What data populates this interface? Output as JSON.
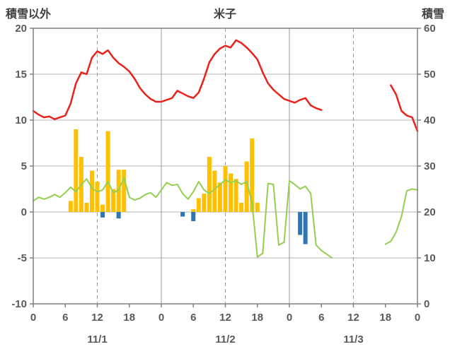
{
  "header": {
    "left_label": "積雪以外",
    "title": "米子",
    "right_label": "積雪"
  },
  "chart_data": {
    "type": "mixed",
    "title": "米子",
    "left_axis_title": "積雪以外",
    "right_axis_title": "積雪",
    "x_range": [
      0,
      72
    ],
    "left_axis": {
      "range": [
        -10,
        20
      ],
      "ticks": [
        20,
        15,
        10,
        5,
        0,
        -5,
        -10
      ]
    },
    "right_axis": {
      "range": [
        0,
        60
      ],
      "ticks": [
        60,
        50,
        40,
        30,
        20,
        10,
        0
      ]
    },
    "x_axis": {
      "ticks": [
        {
          "hour": 0,
          "label": "0"
        },
        {
          "hour": 6,
          "label": "6"
        },
        {
          "hour": 12,
          "label": "12"
        },
        {
          "hour": 18,
          "label": "18"
        },
        {
          "hour": 24,
          "label": "0"
        },
        {
          "hour": 30,
          "label": "6"
        },
        {
          "hour": 36,
          "label": "12"
        },
        {
          "hour": 42,
          "label": "18"
        },
        {
          "hour": 48,
          "label": "0"
        },
        {
          "hour": 54,
          "label": "6"
        },
        {
          "hour": 60,
          "label": "12"
        },
        {
          "hour": 66,
          "label": "18"
        },
        {
          "hour": 72,
          "label": "0"
        }
      ],
      "date_labels": [
        {
          "hour": 12,
          "label": "11/1"
        },
        {
          "hour": 36,
          "label": "11/2"
        },
        {
          "hour": 60,
          "label": "11/3"
        }
      ]
    },
    "vlines": [
      {
        "hour": 12,
        "dashed": true
      },
      {
        "hour": 24,
        "dashed": false
      },
      {
        "hour": 36,
        "dashed": true
      },
      {
        "hour": 48,
        "dashed": false
      },
      {
        "hour": 60,
        "dashed": true
      }
    ],
    "colors": {
      "grid": "#b3b3b3",
      "grid_dark": "#999999",
      "axis": "#808080",
      "text": "#595959",
      "red_line": "#e8221a",
      "green_line": "#92d050",
      "yellow_bar": "#ffc000",
      "blue_bar": "#2e75b6"
    },
    "series": [
      {
        "name": "yellow-bars",
        "type": "bar",
        "axis": "left",
        "color": "#ffc000",
        "points": [
          [
            7,
            1.2
          ],
          [
            8,
            9.0
          ],
          [
            9,
            6.0
          ],
          [
            10,
            1.0
          ],
          [
            11,
            4.5
          ],
          [
            12,
            3.3
          ],
          [
            13,
            0.8
          ],
          [
            14,
            8.8
          ],
          [
            15,
            2.5
          ],
          [
            16,
            4.6
          ],
          [
            17,
            4.6
          ],
          [
            30,
            0.3
          ],
          [
            31,
            1.5
          ],
          [
            32,
            2.0
          ],
          [
            33,
            6.0
          ],
          [
            34,
            4.5
          ],
          [
            35,
            3.2
          ],
          [
            36,
            5.0
          ],
          [
            37,
            4.2
          ],
          [
            38,
            3.6
          ],
          [
            39,
            1.0
          ],
          [
            40,
            5.5
          ],
          [
            41,
            8.0
          ],
          [
            42,
            1.0
          ]
        ]
      },
      {
        "name": "blue-bars",
        "type": "bar",
        "axis": "left",
        "color": "#2e75b6",
        "points": [
          [
            13,
            -0.6
          ],
          [
            16,
            -0.7
          ],
          [
            28,
            -0.5
          ],
          [
            30,
            -1.0
          ],
          [
            50,
            -2.5
          ],
          [
            51,
            -3.5
          ]
        ]
      },
      {
        "name": "green-line",
        "type": "line",
        "axis": "left",
        "color": "#92d050",
        "width": 2,
        "points": [
          [
            0,
            1.2
          ],
          [
            1,
            1.6
          ],
          [
            2,
            1.4
          ],
          [
            3,
            1.6
          ],
          [
            4,
            1.9
          ],
          [
            5,
            1.6
          ],
          [
            6,
            2.1
          ],
          [
            7,
            2.7
          ],
          [
            8,
            2.2
          ],
          [
            9,
            3.0
          ],
          [
            10,
            3.6
          ],
          [
            11,
            2.6
          ],
          [
            12,
            2.2
          ],
          [
            13,
            2.4
          ],
          [
            14,
            3.3
          ],
          [
            15,
            2.1
          ],
          [
            16,
            2.4
          ],
          [
            17,
            3.7
          ],
          [
            18,
            1.6
          ],
          [
            19,
            1.3
          ],
          [
            20,
            1.5
          ],
          [
            21,
            1.9
          ],
          [
            22,
            2.1
          ],
          [
            23,
            1.6
          ],
          [
            24,
            2.4
          ],
          [
            25,
            3.2
          ],
          [
            26,
            2.9
          ],
          [
            27,
            3.0
          ],
          [
            28,
            2.0
          ],
          [
            29,
            1.4
          ],
          [
            30,
            2.2
          ],
          [
            31,
            3.3
          ],
          [
            32,
            2.4
          ],
          [
            33,
            2.0
          ],
          [
            34,
            2.5
          ],
          [
            35,
            3.0
          ],
          [
            36,
            3.5
          ],
          [
            37,
            3.2
          ],
          [
            38,
            3.4
          ],
          [
            39,
            3.0
          ],
          [
            40,
            3.3
          ],
          [
            41,
            1.0
          ],
          [
            42,
            -4.9
          ],
          [
            43,
            -4.5
          ],
          [
            44,
            3.1
          ],
          [
            45,
            3.0
          ],
          [
            46,
            -3.6
          ],
          [
            47,
            -3.3
          ],
          [
            48,
            3.4
          ],
          [
            49,
            3.0
          ],
          [
            50,
            2.5
          ],
          [
            51,
            2.8
          ],
          [
            52,
            2.0
          ],
          [
            53,
            -3.6
          ],
          [
            54,
            -4.2
          ],
          [
            55,
            -4.6
          ],
          [
            56,
            -5.0
          ],
          null,
          [
            66,
            -3.5
          ],
          [
            67,
            -3.2
          ],
          [
            68,
            -2.2
          ],
          [
            69,
            -0.5
          ],
          [
            70,
            2.3
          ],
          [
            71,
            2.5
          ],
          [
            72,
            2.4
          ]
        ]
      },
      {
        "name": "red-line",
        "type": "line",
        "axis": "left",
        "color": "#e8221a",
        "width": 2.5,
        "points": [
          [
            0,
            11.0
          ],
          [
            1,
            10.6
          ],
          [
            2,
            10.3
          ],
          [
            3,
            10.4
          ],
          [
            4,
            10.1
          ],
          [
            5,
            10.3
          ],
          [
            6,
            10.5
          ],
          [
            7,
            11.8
          ],
          [
            8,
            14.0
          ],
          [
            9,
            15.2
          ],
          [
            10,
            15.0
          ],
          [
            11,
            16.8
          ],
          [
            12,
            17.5
          ],
          [
            13,
            17.2
          ],
          [
            14,
            17.6
          ],
          [
            15,
            16.8
          ],
          [
            16,
            16.2
          ],
          [
            17,
            15.8
          ],
          [
            18,
            15.3
          ],
          [
            19,
            14.5
          ],
          [
            20,
            13.5
          ],
          [
            21,
            12.8
          ],
          [
            22,
            12.3
          ],
          [
            23,
            12.0
          ],
          [
            24,
            12.0
          ],
          [
            25,
            12.2
          ],
          [
            26,
            12.4
          ],
          [
            27,
            13.2
          ],
          [
            28,
            12.9
          ],
          [
            29,
            12.6
          ],
          [
            30,
            12.4
          ],
          [
            31,
            13.0
          ],
          [
            32,
            14.5
          ],
          [
            33,
            16.3
          ],
          [
            34,
            17.2
          ],
          [
            35,
            17.8
          ],
          [
            36,
            18.1
          ],
          [
            37,
            17.9
          ],
          [
            38,
            18.7
          ],
          [
            39,
            18.4
          ],
          [
            40,
            17.9
          ],
          [
            41,
            17.3
          ],
          [
            42,
            16.6
          ],
          [
            43,
            15.2
          ],
          [
            44,
            14.0
          ],
          [
            45,
            13.3
          ],
          [
            46,
            12.8
          ],
          [
            47,
            12.3
          ],
          [
            48,
            12.1
          ],
          [
            49,
            11.9
          ],
          [
            50,
            12.2
          ],
          [
            51,
            12.4
          ],
          [
            52,
            11.6
          ],
          [
            53,
            11.3
          ],
          [
            54,
            11.1
          ],
          null,
          [
            67,
            13.8
          ],
          [
            68,
            12.8
          ],
          [
            69,
            11.0
          ],
          [
            70,
            10.5
          ],
          [
            71,
            10.3
          ],
          [
            72,
            8.8
          ]
        ]
      }
    ]
  }
}
